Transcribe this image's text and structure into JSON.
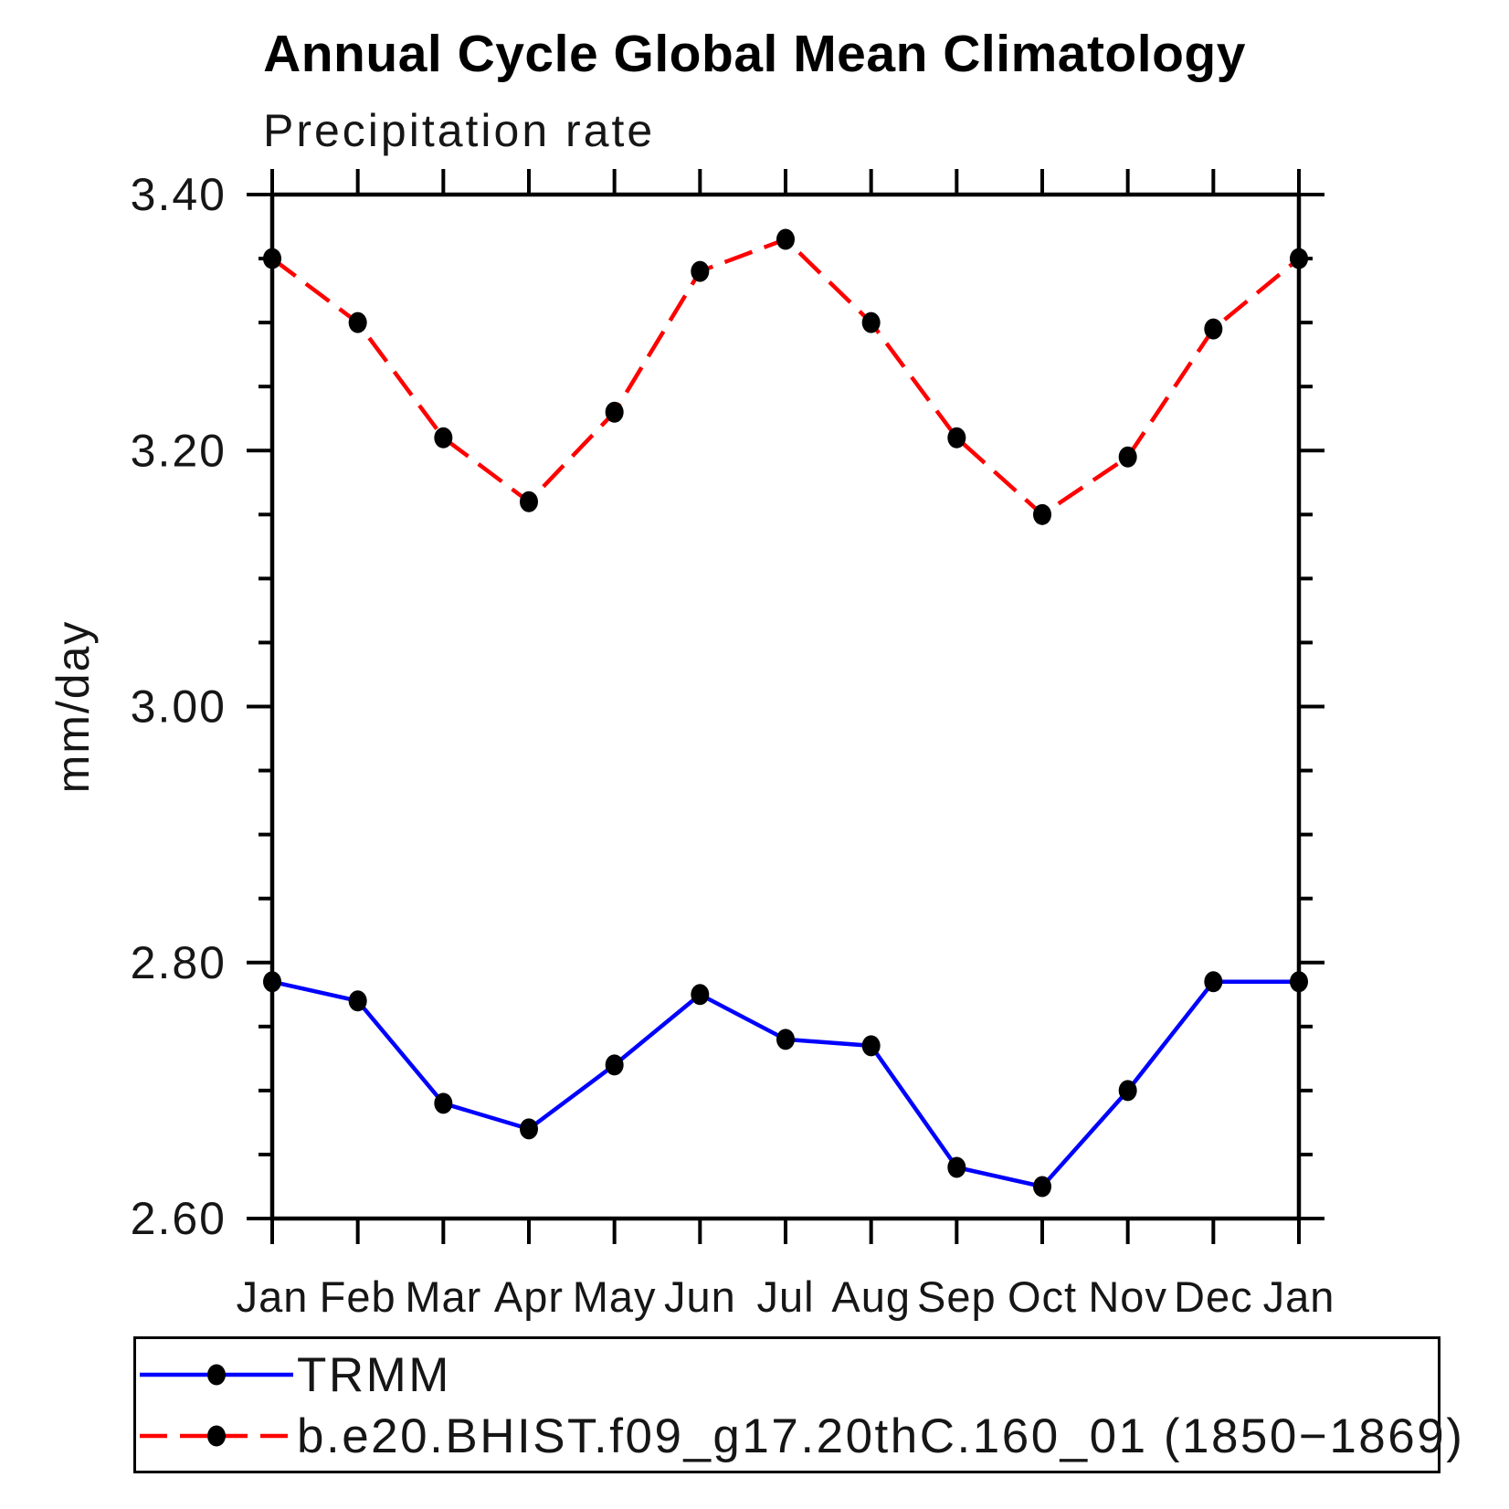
{
  "title": "Annual Cycle Global Mean Climatology",
  "subtitle": "Precipitation rate",
  "y_axis": {
    "label": "mm/day",
    "tick_labels": [
      "2.60",
      "2.80",
      "3.00",
      "3.20",
      "3.40"
    ]
  },
  "colors": {
    "trmm_line": "#0000ff",
    "model_line": "#ff0000",
    "marker": "#000000",
    "axis": "#000000",
    "text": "#161616"
  },
  "chart_data": {
    "type": "line",
    "title": "Annual Cycle Global Mean Climatology",
    "subtitle": "Precipitation rate",
    "xlabel": "",
    "ylabel": "mm/day",
    "categories": [
      "Jan",
      "Feb",
      "Mar",
      "Apr",
      "May",
      "Jun",
      "Jul",
      "Aug",
      "Sep",
      "Oct",
      "Nov",
      "Dec",
      "Jan"
    ],
    "ylim": [
      2.6,
      3.4
    ],
    "y_major_ticks": [
      2.6,
      2.8,
      3.0,
      3.2,
      3.4
    ],
    "y_tick_labels": [
      "2.60",
      "2.80",
      "3.00",
      "3.20",
      "3.40"
    ],
    "y_minor_step": 0.05,
    "grid": false,
    "legend_position": "bottom",
    "series": [
      {
        "name": "TRMM",
        "color": "#0000ff",
        "style": "solid",
        "marker": "black-dot",
        "values": [
          2.785,
          2.77,
          2.69,
          2.67,
          2.72,
          2.775,
          2.74,
          2.735,
          2.64,
          2.625,
          2.7,
          2.785,
          2.785
        ]
      },
      {
        "name": "b.e20.BHIST.f09_g17.20thC.160_01 (1850−1869)",
        "color": "#ff0000",
        "style": "dashed",
        "marker": "black-dot",
        "values": [
          3.35,
          3.3,
          3.21,
          3.16,
          3.23,
          3.34,
          3.365,
          3.3,
          3.21,
          3.15,
          3.195,
          3.295,
          3.35
        ]
      }
    ]
  }
}
